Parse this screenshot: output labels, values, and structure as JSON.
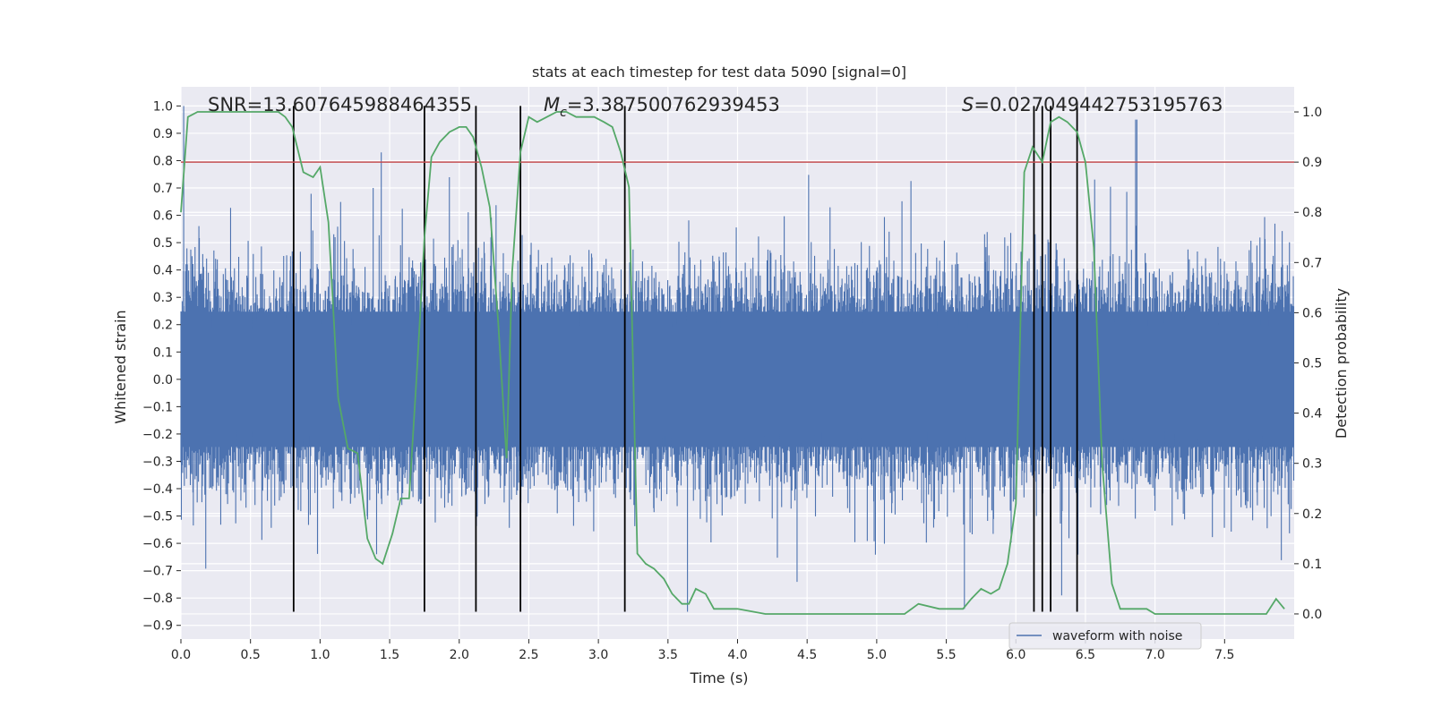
{
  "chart_data": {
    "type": "line",
    "title": "stats at each timestep for test data 5090 [signal=0]",
    "xlabel": "Time (s)",
    "ylabel_left": "Whitened strain",
    "ylabel_right": "Detection probability",
    "xlim": [
      0,
      8
    ],
    "ylim_left": [
      -0.95,
      1.07
    ],
    "ylim_right": [
      -0.05,
      1.05
    ],
    "x_ticks": [
      "0.0",
      "0.5",
      "1.0",
      "1.5",
      "2.0",
      "2.5",
      "3.0",
      "3.5",
      "4.0",
      "4.5",
      "5.0",
      "5.5",
      "6.0",
      "6.5",
      "7.0",
      "7.5"
    ],
    "y_ticks_left": [
      "-0.9",
      "-0.8",
      "-0.7",
      "-0.6",
      "-0.5",
      "-0.4",
      "-0.3",
      "-0.2",
      "-0.1",
      "0.0",
      "0.1",
      "0.2",
      "0.3",
      "0.4",
      "0.5",
      "0.6",
      "0.7",
      "0.8",
      "0.9",
      "1.0"
    ],
    "y_ticks_right": [
      "0.0",
      "0.1",
      "0.2",
      "0.3",
      "0.4",
      "0.5",
      "0.6",
      "0.7",
      "0.8",
      "0.9",
      "1.0"
    ],
    "annotations": {
      "snr": "SNR=13.607645988464355",
      "mc_prefix": "M",
      "mc_sub": "c",
      "mc_value": "=3.387500762939453",
      "s_prefix": "S",
      "s_value": "=0.027049442753195763"
    },
    "threshold": 0.9,
    "vertical_lines_x": [
      0.81,
      1.75,
      2.12,
      2.44,
      3.19,
      6.13,
      6.19,
      6.25,
      6.44
    ],
    "vertical_lines_range": [
      -0.85,
      1.0
    ],
    "series": [
      {
        "name": "waveform with noise",
        "axis": "left",
        "color": "#4c72b0",
        "description": "dense noisy whitened strain, approx range -0.85 to 0.95",
        "envelope": {
          "core": 0.45,
          "peak": 0.95,
          "trough": -0.85
        }
      },
      {
        "name": "detection probability",
        "axis": "right",
        "color": "#55a868",
        "x": [
          0.0,
          0.05,
          0.12,
          0.2,
          0.3,
          0.4,
          0.5,
          0.6,
          0.7,
          0.75,
          0.8,
          0.88,
          0.95,
          1.0,
          1.06,
          1.13,
          1.2,
          1.27,
          1.34,
          1.4,
          1.45,
          1.52,
          1.58,
          1.64,
          1.7,
          1.75,
          1.8,
          1.86,
          1.93,
          2.0,
          2.05,
          2.1,
          2.16,
          2.22,
          2.28,
          2.34,
          2.38,
          2.44,
          2.5,
          2.56,
          2.63,
          2.7,
          2.77,
          2.84,
          2.9,
          2.97,
          3.04,
          3.1,
          3.16,
          3.22,
          3.28,
          3.34,
          3.4,
          3.47,
          3.53,
          3.6,
          3.65,
          3.7,
          3.77,
          3.83,
          3.9,
          4.0,
          4.2,
          4.4,
          4.6,
          4.8,
          5.0,
          5.2,
          5.3,
          5.45,
          5.55,
          5.62,
          5.68,
          5.75,
          5.82,
          5.88,
          5.94,
          6.0,
          6.06,
          6.12,
          6.19,
          6.25,
          6.31,
          6.37,
          6.44,
          6.5,
          6.56,
          6.62,
          6.69,
          6.75,
          6.81,
          6.88,
          6.94,
          7.0,
          7.2,
          7.5,
          7.7,
          7.8,
          7.87,
          7.93
        ],
        "values": [
          0.8,
          0.99,
          1.0,
          1.0,
          1.0,
          1.0,
          1.0,
          1.0,
          1.0,
          0.99,
          0.97,
          0.88,
          0.87,
          0.89,
          0.78,
          0.43,
          0.33,
          0.32,
          0.15,
          0.11,
          0.1,
          0.16,
          0.23,
          0.23,
          0.5,
          0.75,
          0.91,
          0.94,
          0.96,
          0.97,
          0.97,
          0.95,
          0.89,
          0.81,
          0.58,
          0.31,
          0.68,
          0.92,
          0.99,
          0.98,
          0.99,
          1.0,
          1.0,
          0.99,
          0.99,
          0.99,
          0.98,
          0.97,
          0.92,
          0.85,
          0.12,
          0.1,
          0.09,
          0.07,
          0.04,
          0.02,
          0.02,
          0.05,
          0.04,
          0.01,
          0.01,
          0.01,
          0.0,
          0.0,
          0.0,
          0.0,
          0.0,
          0.0,
          0.02,
          0.01,
          0.01,
          0.01,
          0.03,
          0.05,
          0.04,
          0.05,
          0.1,
          0.22,
          0.88,
          0.93,
          0.9,
          0.98,
          0.99,
          0.98,
          0.96,
          0.9,
          0.73,
          0.3,
          0.06,
          0.01,
          0.01,
          0.01,
          0.01,
          0.0,
          0.0,
          0.0,
          0.0,
          0.0,
          0.03,
          0.01
        ]
      }
    ],
    "legend": {
      "label": "waveform with noise",
      "placement": "lower-center-right"
    }
  },
  "colors": {
    "background": "#eaeaf2",
    "grid": "#ffffff",
    "waveform": "#4c72b0",
    "probability": "#55a868",
    "threshold": "#c44e52",
    "vline": "#000000"
  }
}
